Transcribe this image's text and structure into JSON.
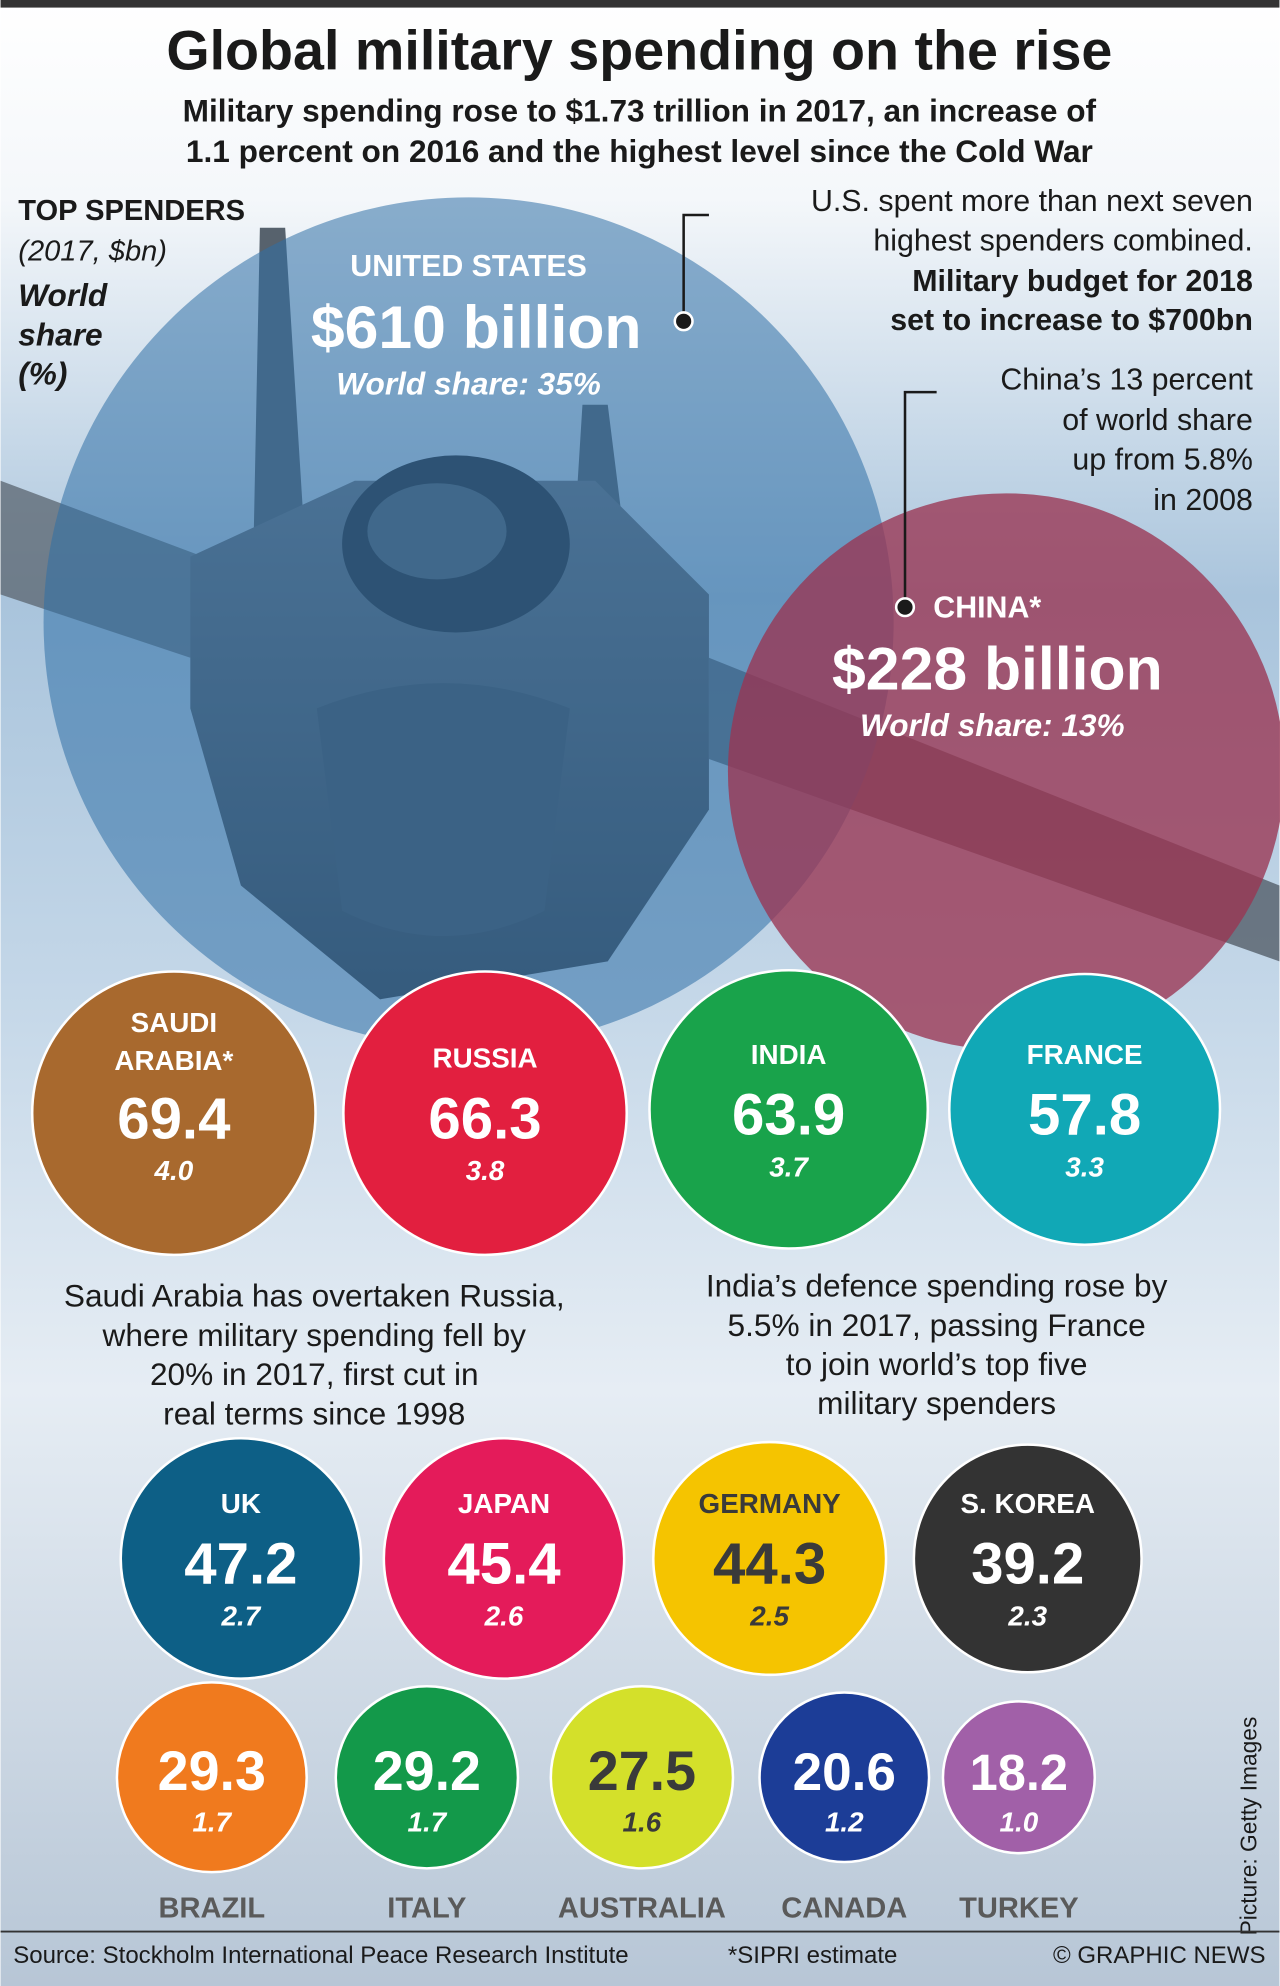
{
  "header": {
    "title": "Global military spending on the rise",
    "subtitle": [
      "Military spending rose to $1.73 trillion in 2017, an increase of",
      "1.1 percent on 2016 and the highest level since the Cold War"
    ]
  },
  "legend": {
    "title": "TOP SPENDERS",
    "units": "(2017, $bn)",
    "share": [
      "World",
      "share",
      "(%)"
    ]
  },
  "big": [
    {
      "name": "UNITED STATES",
      "value": "$610 billion",
      "share": "World share: 35%"
    },
    {
      "name": "CHINA*",
      "value": "$228 billion",
      "share": "World share: 13%"
    }
  ],
  "notes": [
    {
      "lines": [
        "U.S. spent more than next seven",
        "highest spenders combined."
      ],
      "bold_lines": [
        "Military budget for 2018",
        "set to increase to $700bn"
      ]
    },
    {
      "lines": [
        "China’s 13 percent",
        "of world share",
        "up from 5.8%",
        "in 2008"
      ]
    },
    {
      "lines": [
        "Saudi Arabia has overtaken Russia,",
        "where military spending fell by",
        "20% in 2017, first cut in",
        "real terms since 1998"
      ]
    },
    {
      "lines": [
        "India’s defence spending rose by",
        "5.5% in 2017, passing France",
        "to join world’s top five",
        "military spenders"
      ]
    }
  ],
  "countries": [
    {
      "name": [
        "SAUDI",
        "ARABIA*"
      ],
      "value": "69.4",
      "share": "4.0"
    },
    {
      "name": [
        "RUSSIA"
      ],
      "value": "66.3",
      "share": "3.8"
    },
    {
      "name": [
        "INDIA"
      ],
      "value": "63.9",
      "share": "3.7"
    },
    {
      "name": [
        "FRANCE"
      ],
      "value": "57.8",
      "share": "3.3"
    },
    {
      "name": [
        "UK"
      ],
      "value": "47.2",
      "share": "2.7"
    },
    {
      "name": [
        "JAPAN"
      ],
      "value": "45.4",
      "share": "2.6"
    },
    {
      "name": [
        "GERMANY"
      ],
      "value": "44.3",
      "share": "2.5"
    },
    {
      "name": [
        "S. KOREA"
      ],
      "value": "39.2",
      "share": "2.3"
    },
    {
      "name": [
        "BRAZIL"
      ],
      "value": "29.3",
      "share": "1.7"
    },
    {
      "name": [
        "ITALY"
      ],
      "value": "29.2",
      "share": "1.7"
    },
    {
      "name": [
        "AUSTRALIA"
      ],
      "value": "27.5",
      "share": "1.6"
    },
    {
      "name": [
        "CANADA"
      ],
      "value": "20.6",
      "share": "1.2"
    },
    {
      "name": [
        "TURKEY"
      ],
      "value": "18.2",
      "share": "1.0"
    }
  ],
  "photo_credit": "Picture: Getty Images",
  "footer": {
    "source": "Source: Stockholm International Peace Research Institute",
    "note": "*SIPRI estimate",
    "credit": "© GRAPHIC NEWS"
  }
}
